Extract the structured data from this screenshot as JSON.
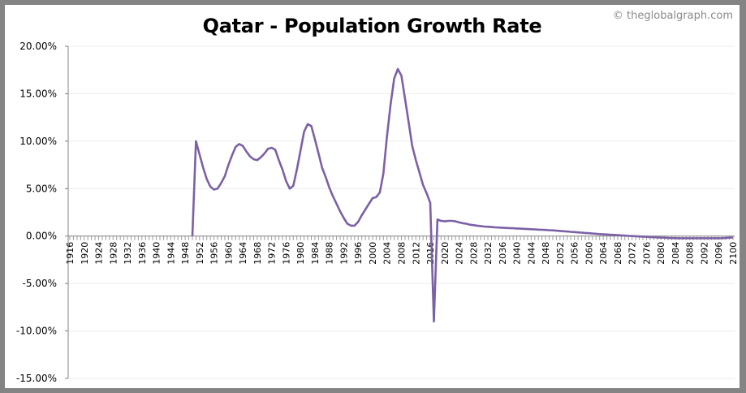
{
  "chart_data": {
    "type": "line",
    "title": "Qatar - Population Growth Rate",
    "watermark": "© theglobalgraph.com",
    "xlabel": "",
    "ylabel": "",
    "xlim": [
      1916,
      2100
    ],
    "x_tick_step": 4,
    "ylim": [
      -15,
      20
    ],
    "y_ticks": [
      20,
      15,
      10,
      5,
      0,
      -5,
      -10,
      -15
    ],
    "y_tick_labels": [
      "20.00%",
      "15.00%",
      "10.00%",
      "5.00%",
      "0.00%",
      "-5.00%",
      "-10.00%",
      "-15.00%"
    ],
    "grid": true,
    "line_color": "#7b61a5",
    "series": [
      {
        "points": [
          [
            1950,
            0
          ],
          [
            1951,
            10.0
          ],
          [
            1952,
            8.6
          ],
          [
            1953,
            7.2
          ],
          [
            1954,
            6.0
          ],
          [
            1955,
            5.2
          ],
          [
            1956,
            4.9
          ],
          [
            1957,
            5.0
          ],
          [
            1958,
            5.6
          ],
          [
            1959,
            6.3
          ],
          [
            1960,
            7.5
          ],
          [
            1961,
            8.5
          ],
          [
            1962,
            9.4
          ],
          [
            1963,
            9.7
          ],
          [
            1964,
            9.5
          ],
          [
            1965,
            8.9
          ],
          [
            1966,
            8.4
          ],
          [
            1967,
            8.1
          ],
          [
            1968,
            8.0
          ],
          [
            1969,
            8.3
          ],
          [
            1970,
            8.7
          ],
          [
            1971,
            9.2
          ],
          [
            1972,
            9.3
          ],
          [
            1973,
            9.1
          ],
          [
            1974,
            8.0
          ],
          [
            1975,
            7.0
          ],
          [
            1976,
            5.8
          ],
          [
            1977,
            5.0
          ],
          [
            1978,
            5.3
          ],
          [
            1979,
            7.0
          ],
          [
            1980,
            9.0
          ],
          [
            1981,
            11.0
          ],
          [
            1982,
            11.8
          ],
          [
            1983,
            11.6
          ],
          [
            1984,
            10.2
          ],
          [
            1985,
            8.7
          ],
          [
            1986,
            7.2
          ],
          [
            1987,
            6.2
          ],
          [
            1988,
            5.1
          ],
          [
            1989,
            4.2
          ],
          [
            1990,
            3.4
          ],
          [
            1991,
            2.6
          ],
          [
            1992,
            1.9
          ],
          [
            1993,
            1.3
          ],
          [
            1994,
            1.1
          ],
          [
            1995,
            1.1
          ],
          [
            1996,
            1.5
          ],
          [
            1997,
            2.2
          ],
          [
            1998,
            2.8
          ],
          [
            1999,
            3.4
          ],
          [
            2000,
            4.0
          ],
          [
            2001,
            4.1
          ],
          [
            2002,
            4.6
          ],
          [
            2003,
            6.6
          ],
          [
            2004,
            10.5
          ],
          [
            2005,
            13.9
          ],
          [
            2006,
            16.6
          ],
          [
            2007,
            17.6
          ],
          [
            2008,
            16.9
          ],
          [
            2009,
            14.5
          ],
          [
            2010,
            12.0
          ],
          [
            2011,
            9.5
          ],
          [
            2012,
            8.0
          ],
          [
            2013,
            6.7
          ],
          [
            2014,
            5.4
          ],
          [
            2015,
            4.5
          ],
          [
            2016,
            3.5
          ],
          [
            2017,
            -9.0
          ],
          [
            2018,
            1.75
          ],
          [
            2019,
            1.6
          ],
          [
            2020,
            1.55
          ],
          [
            2021,
            1.6
          ],
          [
            2022,
            1.6
          ],
          [
            2023,
            1.55
          ],
          [
            2024,
            1.45
          ],
          [
            2025,
            1.35
          ],
          [
            2026,
            1.3
          ],
          [
            2027,
            1.2
          ],
          [
            2028,
            1.15
          ],
          [
            2029,
            1.1
          ],
          [
            2030,
            1.05
          ],
          [
            2031,
            1.0
          ],
          [
            2032,
            0.98
          ],
          [
            2033,
            0.95
          ],
          [
            2034,
            0.92
          ],
          [
            2035,
            0.9
          ],
          [
            2036,
            0.88
          ],
          [
            2037,
            0.86
          ],
          [
            2038,
            0.84
          ],
          [
            2039,
            0.82
          ],
          [
            2040,
            0.8
          ],
          [
            2041,
            0.78
          ],
          [
            2042,
            0.76
          ],
          [
            2043,
            0.74
          ],
          [
            2044,
            0.72
          ],
          [
            2045,
            0.7
          ],
          [
            2046,
            0.68
          ],
          [
            2047,
            0.66
          ],
          [
            2048,
            0.64
          ],
          [
            2049,
            0.62
          ],
          [
            2050,
            0.6
          ],
          [
            2051,
            0.57
          ],
          [
            2052,
            0.54
          ],
          [
            2053,
            0.51
          ],
          [
            2054,
            0.48
          ],
          [
            2055,
            0.45
          ],
          [
            2056,
            0.42
          ],
          [
            2057,
            0.39
          ],
          [
            2058,
            0.36
          ],
          [
            2059,
            0.33
          ],
          [
            2060,
            0.3
          ],
          [
            2061,
            0.27
          ],
          [
            2062,
            0.24
          ],
          [
            2063,
            0.21
          ],
          [
            2064,
            0.18
          ],
          [
            2065,
            0.16
          ],
          [
            2066,
            0.14
          ],
          [
            2067,
            0.12
          ],
          [
            2068,
            0.1
          ],
          [
            2069,
            0.07
          ],
          [
            2070,
            0.04
          ],
          [
            2071,
            0.02
          ],
          [
            2072,
            0.0
          ],
          [
            2073,
            -0.02
          ],
          [
            2074,
            -0.04
          ],
          [
            2075,
            -0.06
          ],
          [
            2076,
            -0.08
          ],
          [
            2077,
            -0.1
          ],
          [
            2078,
            -0.12
          ],
          [
            2079,
            -0.14
          ],
          [
            2080,
            -0.16
          ],
          [
            2081,
            -0.18
          ],
          [
            2082,
            -0.2
          ],
          [
            2083,
            -0.21
          ],
          [
            2084,
            -0.22
          ],
          [
            2085,
            -0.23
          ],
          [
            2086,
            -0.23
          ],
          [
            2087,
            -0.23
          ],
          [
            2088,
            -0.23
          ],
          [
            2089,
            -0.23
          ],
          [
            2090,
            -0.23
          ],
          [
            2091,
            -0.23
          ],
          [
            2092,
            -0.23
          ],
          [
            2093,
            -0.23
          ],
          [
            2094,
            -0.23
          ],
          [
            2095,
            -0.23
          ],
          [
            2096,
            -0.23
          ],
          [
            2097,
            -0.22
          ],
          [
            2098,
            -0.2
          ],
          [
            2099,
            -0.17
          ],
          [
            2100,
            -0.15
          ]
        ]
      }
    ]
  }
}
